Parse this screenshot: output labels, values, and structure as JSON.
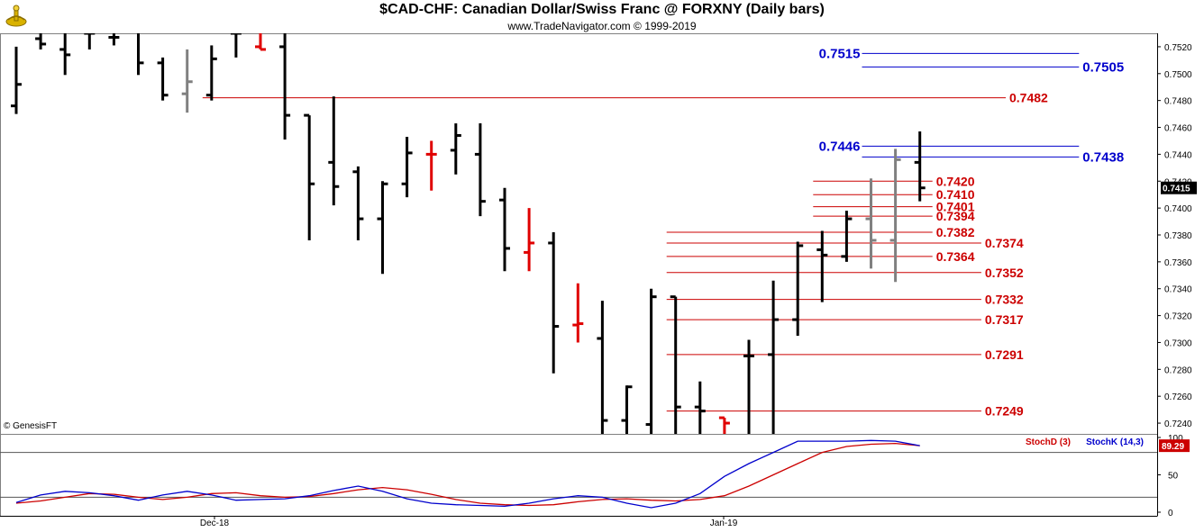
{
  "header": {
    "title": "$CAD-CHF:  Canadian Dollar/Swiss Franc @ FORXNY  (Daily bars)",
    "subtitle": "www.TradeNavigator.com © 1999-2019",
    "copyright": "© GenesisFT"
  },
  "colors": {
    "bar": "#000000",
    "bar_gray": "#808080",
    "bar_red": "#e00000",
    "level_red": "#cc0000",
    "level_blue": "#0000cc",
    "stoch_d": "#cc0000",
    "stoch_k": "#0000cc"
  },
  "chart_data": [
    {
      "type": "ohlc",
      "title": "$CAD-CHF:  Canadian Dollar/Swiss Franc @ FORXNY  (Daily bars)",
      "ylim": [
        0.7232,
        0.753
      ],
      "y_ticks": [
        "0.7520",
        "0.7500",
        "0.7480",
        "0.7460",
        "0.7440",
        "0.7420",
        "0.7400",
        "0.7380",
        "0.7360",
        "0.7340",
        "0.7320",
        "0.7300",
        "0.7280",
        "0.7260",
        "0.7240"
      ],
      "x_tick_labels": [
        "Dec-18",
        "Jan-19"
      ],
      "last_price_label": "0.7415",
      "last_price": 0.7415,
      "bars": [
        {
          "h": 0.752,
          "l": 0.747,
          "o": 0.7476,
          "c": 0.7492,
          "col": "bar"
        },
        {
          "h": 0.7532,
          "l": 0.7518,
          "o": 0.7526,
          "c": 0.7522,
          "col": "bar"
        },
        {
          "h": 0.7533,
          "l": 0.7499,
          "o": 0.7518,
          "c": 0.7514,
          "col": "bar"
        },
        {
          "h": 0.7532,
          "l": 0.7518,
          "o": 0.753,
          "c": 0.753,
          "col": "bar"
        },
        {
          "h": 0.7533,
          "l": 0.7521,
          "o": 0.7527,
          "c": 0.7527,
          "col": "bar"
        },
        {
          "h": 0.7533,
          "l": 0.7499,
          "o": 0.7533,
          "c": 0.7508,
          "col": "bar"
        },
        {
          "h": 0.7512,
          "l": 0.748,
          "o": 0.7508,
          "c": 0.7484,
          "col": "bar"
        },
        {
          "h": 0.7518,
          "l": 0.7471,
          "o": 0.7485,
          "c": 0.7494,
          "col": "bar_gray"
        },
        {
          "h": 0.7521,
          "l": 0.748,
          "o": 0.7484,
          "c": 0.7511,
          "col": "bar"
        },
        {
          "h": 0.7533,
          "l": 0.7512,
          "o": 0.753,
          "c": 0.753,
          "col": "bar"
        },
        {
          "h": 0.7533,
          "l": 0.7518,
          "o": 0.752,
          "c": 0.7518,
          "col": "bar_red"
        },
        {
          "h": 0.7533,
          "l": 0.7451,
          "o": 0.752,
          "c": 0.7469,
          "col": "bar"
        },
        {
          "h": 0.7469,
          "l": 0.7376,
          "o": 0.7469,
          "c": 0.7418,
          "col": "bar"
        },
        {
          "h": 0.7483,
          "l": 0.7402,
          "o": 0.7434,
          "c": 0.7416,
          "col": "bar"
        },
        {
          "h": 0.7431,
          "l": 0.7376,
          "o": 0.7427,
          "c": 0.7392,
          "col": "bar"
        },
        {
          "h": 0.742,
          "l": 0.7351,
          "o": 0.7392,
          "c": 0.7418,
          "col": "bar"
        },
        {
          "h": 0.7453,
          "l": 0.7408,
          "o": 0.7418,
          "c": 0.7441,
          "col": "bar"
        },
        {
          "h": 0.745,
          "l": 0.7413,
          "o": 0.744,
          "c": 0.744,
          "col": "bar_red"
        },
        {
          "h": 0.7463,
          "l": 0.7425,
          "o": 0.7443,
          "c": 0.7454,
          "col": "bar"
        },
        {
          "h": 0.7463,
          "l": 0.7394,
          "o": 0.744,
          "c": 0.7405,
          "col": "bar"
        },
        {
          "h": 0.7415,
          "l": 0.7353,
          "o": 0.7406,
          "c": 0.737,
          "col": "bar"
        },
        {
          "h": 0.74,
          "l": 0.7353,
          "o": 0.7367,
          "c": 0.7374,
          "col": "bar_red"
        },
        {
          "h": 0.7382,
          "l": 0.7277,
          "o": 0.7374,
          "c": 0.7312,
          "col": "bar"
        },
        {
          "h": 0.7344,
          "l": 0.73,
          "o": 0.7313,
          "c": 0.7314,
          "col": "bar_red"
        },
        {
          "h": 0.7331,
          "l": 0.7232,
          "o": 0.7303,
          "c": 0.7242,
          "col": "bar"
        },
        {
          "h": 0.7268,
          "l": 0.7232,
          "o": 0.7242,
          "c": 0.7267,
          "col": "bar"
        },
        {
          "h": 0.734,
          "l": 0.7232,
          "o": 0.7239,
          "c": 0.7334,
          "col": "bar"
        },
        {
          "h": 0.7334,
          "l": 0.7232,
          "o": 0.7334,
          "c": 0.7252,
          "col": "bar"
        },
        {
          "h": 0.7271,
          "l": 0.7232,
          "o": 0.7252,
          "c": 0.7249,
          "col": "bar"
        },
        {
          "h": 0.7244,
          "l": 0.7232,
          "o": 0.7244,
          "c": 0.724,
          "col": "bar_red"
        },
        {
          "h": 0.7302,
          "l": 0.7232,
          "o": 0.729,
          "c": 0.729,
          "col": "bar"
        },
        {
          "h": 0.7346,
          "l": 0.7232,
          "o": 0.7291,
          "c": 0.7317,
          "col": "bar"
        },
        {
          "h": 0.7375,
          "l": 0.7305,
          "o": 0.7317,
          "c": 0.7372,
          "col": "bar"
        },
        {
          "h": 0.7383,
          "l": 0.733,
          "o": 0.7369,
          "c": 0.7365,
          "col": "bar"
        },
        {
          "h": 0.7398,
          "l": 0.736,
          "o": 0.7364,
          "c": 0.7392,
          "col": "bar"
        },
        {
          "h": 0.7422,
          "l": 0.7355,
          "o": 0.7392,
          "c": 0.7376,
          "col": "bar_gray"
        },
        {
          "h": 0.7444,
          "l": 0.7345,
          "o": 0.7376,
          "c": 0.7436,
          "col": "bar_gray"
        },
        {
          "h": 0.7457,
          "l": 0.7405,
          "o": 0.7434,
          "c": 0.7415,
          "col": "bar"
        }
      ],
      "levels": [
        {
          "value": 0.7515,
          "label": "0.7515",
          "color": "level_blue",
          "x1_bar": 35,
          "x2_bar": 43,
          "label_pos": "left"
        },
        {
          "value": 0.7505,
          "label": "0.7505",
          "color": "level_blue",
          "x1_bar": 35,
          "x2_bar": 43,
          "label_pos": "right"
        },
        {
          "value": 0.7482,
          "label": "0.7482",
          "color": "level_red",
          "x1_bar": 8,
          "x2_bar": 40,
          "label_pos": "right"
        },
        {
          "value": 0.7446,
          "label": "0.7446",
          "color": "level_blue",
          "x1_bar": 35,
          "x2_bar": 43,
          "label_pos": "left"
        },
        {
          "value": 0.7438,
          "label": "0.7438",
          "color": "level_blue",
          "x1_bar": 35,
          "x2_bar": 43,
          "label_pos": "right"
        },
        {
          "value": 0.742,
          "label": "0.7420",
          "color": "level_red",
          "x1_bar": 33,
          "x2_bar": 37,
          "label_pos": "right"
        },
        {
          "value": 0.741,
          "label": "0.7410",
          "color": "level_red",
          "x1_bar": 33,
          "x2_bar": 37,
          "label_pos": "right"
        },
        {
          "value": 0.7401,
          "label": "0.7401",
          "color": "level_red",
          "x1_bar": 33,
          "x2_bar": 37,
          "label_pos": "right"
        },
        {
          "value": 0.7394,
          "label": "0.7394",
          "color": "level_red",
          "x1_bar": 33,
          "x2_bar": 37,
          "label_pos": "right"
        },
        {
          "value": 0.7382,
          "label": "0.7382",
          "color": "level_red",
          "x1_bar": 27,
          "x2_bar": 37,
          "label_pos": "right"
        },
        {
          "value": 0.7374,
          "label": "0.7374",
          "color": "level_red",
          "x1_bar": 27,
          "x2_bar": 39,
          "label_pos": "right"
        },
        {
          "value": 0.7364,
          "label": "0.7364",
          "color": "level_red",
          "x1_bar": 27,
          "x2_bar": 37,
          "label_pos": "right"
        },
        {
          "value": 0.7352,
          "label": "0.7352",
          "color": "level_red",
          "x1_bar": 27,
          "x2_bar": 39,
          "label_pos": "right"
        },
        {
          "value": 0.7332,
          "label": "0.7332",
          "color": "level_red",
          "x1_bar": 27,
          "x2_bar": 39,
          "label_pos": "right"
        },
        {
          "value": 0.7317,
          "label": "0.7317",
          "color": "level_red",
          "x1_bar": 27,
          "x2_bar": 39,
          "label_pos": "right"
        },
        {
          "value": 0.7291,
          "label": "0.7291",
          "color": "level_red",
          "x1_bar": 27,
          "x2_bar": 39,
          "label_pos": "right"
        },
        {
          "value": 0.7249,
          "label": "0.7249",
          "color": "level_red",
          "x1_bar": 27,
          "x2_bar": 39,
          "label_pos": "right"
        }
      ]
    },
    {
      "type": "line",
      "title": "",
      "legend": [
        "StochD (3)",
        "StochK (14,3)"
      ],
      "ylim": [
        0,
        100
      ],
      "y_ticks": [
        "100",
        "50",
        "0"
      ],
      "reference_lines": [
        80,
        20
      ],
      "last_value_label": "89.29",
      "series": [
        {
          "name": "StochD (3)",
          "color": "stoch_d",
          "values": [
            12,
            15,
            20,
            25,
            24,
            20,
            17,
            20,
            25,
            26,
            22,
            20,
            21,
            25,
            30,
            33,
            30,
            24,
            17,
            12,
            10,
            9,
            10,
            14,
            17,
            18,
            16,
            15,
            17,
            22,
            35,
            50,
            65,
            80,
            88,
            91,
            92,
            89
          ]
        },
        {
          "name": "StochK (14,3)",
          "color": "stoch_k",
          "values": [
            13,
            23,
            28,
            26,
            22,
            16,
            23,
            28,
            23,
            16,
            17,
            18,
            22,
            29,
            35,
            28,
            18,
            12,
            10,
            9,
            8,
            12,
            18,
            22,
            20,
            12,
            6,
            12,
            25,
            48,
            65,
            80,
            95,
            95,
            95,
            96,
            95,
            89
          ]
        }
      ]
    }
  ]
}
